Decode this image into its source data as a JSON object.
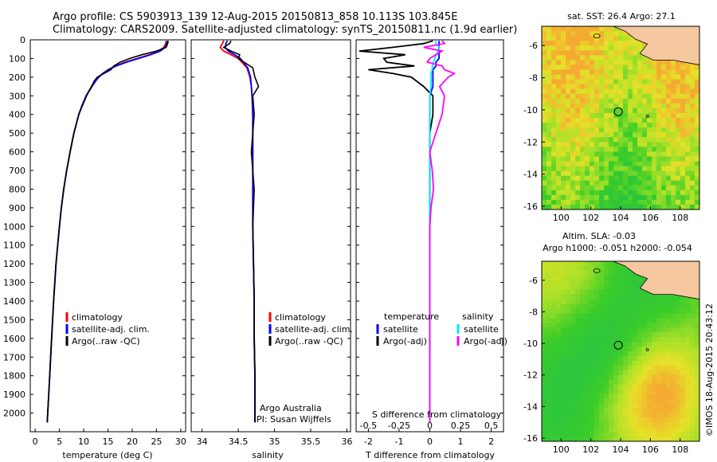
{
  "header": {
    "line1": "Argo profile: CS 5903913_139 12-Aug-2015 20150813_858 10.113S 103.845E",
    "line2": "Climatology: CARS2009. Satellite-adjusted climatology: synTS_20150811.nc (1.9d earlier)"
  },
  "colors": {
    "climatology": "#ff0000",
    "satellite": "#0000ff",
    "argo": "#000000",
    "salinity_sat": "#00e5ff",
    "salinity_argo": "#ff00ff",
    "land": "#f5c8a0"
  },
  "chart_data": [
    {
      "type": "line",
      "name": "temperature",
      "xlabel": "temperature (deg C)",
      "xlim": [
        -1,
        31
      ],
      "ylim": [
        2100,
        0
      ],
      "xticks": [
        "0",
        "5",
        "10",
        "15",
        "20",
        "25",
        "30"
      ],
      "yticks": [
        "0",
        "100",
        "200",
        "300",
        "400",
        "500",
        "600",
        "700",
        "800",
        "900",
        "1000",
        "1100",
        "1200",
        "1300",
        "1400",
        "1500",
        "1600",
        "1700",
        "1800",
        "1900",
        "2000"
      ],
      "legend": [
        "climatology",
        "satellite-adj. clim.",
        "Argo(..raw -QC)"
      ],
      "depth": [
        5,
        20,
        40,
        60,
        80,
        100,
        120,
        140,
        160,
        180,
        200,
        220,
        250,
        300,
        350,
        400,
        500,
        600,
        700,
        800,
        900,
        1000,
        1200,
        1400,
        1600,
        1800,
        2000,
        2050
      ],
      "series": [
        {
          "name": "climatology",
          "values": [
            27.0,
            26.9,
            26.5,
            25.5,
            23.5,
            21.0,
            18.5,
            16.5,
            15.0,
            13.9,
            13.0,
            12.4,
            11.6,
            10.5,
            9.7,
            9.0,
            8.0,
            7.2,
            6.5,
            5.9,
            5.4,
            5.0,
            4.3,
            3.8,
            3.4,
            3.0,
            2.6,
            2.5
          ]
        },
        {
          "name": "satellite-adj. clim.",
          "values": [
            27.3,
            27.1,
            26.8,
            25.8,
            23.8,
            21.3,
            18.8,
            16.7,
            15.1,
            14.0,
            13.1,
            12.5,
            11.7,
            10.5,
            9.7,
            9.0,
            8.0,
            7.2,
            6.5,
            5.9,
            5.4,
            5.0,
            4.3,
            3.8,
            3.4,
            3.0,
            2.6,
            2.5
          ]
        },
        {
          "name": "Argo(..raw -QC)",
          "values": [
            27.4,
            27.3,
            27.0,
            25.0,
            22.0,
            19.5,
            17.5,
            16.2,
            15.6,
            14.2,
            12.8,
            12.2,
            11.6,
            10.6,
            9.8,
            9.0,
            8.0,
            7.2,
            6.5,
            5.9,
            5.4,
            5.0,
            4.3,
            3.8,
            3.4,
            3.0,
            2.6,
            2.5
          ]
        }
      ]
    },
    {
      "type": "line",
      "name": "salinity",
      "xlabel": "salinity",
      "xlim": [
        33.85,
        36.05
      ],
      "ylim": [
        2100,
        0
      ],
      "xticks": [
        "34",
        "34.5",
        "35",
        "35.5",
        "36"
      ],
      "legend": [
        "climatology",
        "satellite-adj. clim.",
        "Argo(..raw -QC)"
      ],
      "annotation": [
        "Argo Australia",
        "PI: Susan Wijffels"
      ],
      "depth": [
        5,
        20,
        40,
        60,
        80,
        100,
        150,
        200,
        250,
        300,
        400,
        500,
        600,
        700,
        800,
        1000,
        1200,
        1400,
        1600,
        1800,
        2000,
        2050
      ],
      "series": [
        {
          "name": "climatology",
          "values": [
            34.3,
            34.28,
            34.25,
            34.3,
            34.4,
            34.5,
            34.62,
            34.66,
            34.68,
            34.69,
            34.7,
            34.7,
            34.7,
            34.7,
            34.7,
            34.7,
            34.71,
            34.72,
            34.72,
            34.73,
            34.73,
            34.73
          ]
        },
        {
          "name": "satellite-adj. clim.",
          "values": [
            34.35,
            34.33,
            34.32,
            34.36,
            34.45,
            34.53,
            34.63,
            34.67,
            34.68,
            34.69,
            34.7,
            34.7,
            34.7,
            34.7,
            34.7,
            34.7,
            34.71,
            34.72,
            34.72,
            34.73,
            34.73,
            34.73
          ]
        },
        {
          "name": "Argo(..raw -QC)",
          "values": [
            34.4,
            34.38,
            34.3,
            34.4,
            34.52,
            34.5,
            34.7,
            34.73,
            34.78,
            34.7,
            34.72,
            34.7,
            34.68,
            34.7,
            34.72,
            34.7,
            34.71,
            34.72,
            34.72,
            34.73,
            34.73,
            34.73
          ]
        }
      ]
    },
    {
      "type": "line",
      "name": "difference",
      "xlabel": "T difference from climatology",
      "xlabel2": "S difference from climatology",
      "xlim": [
        -2.4,
        2.4
      ],
      "ylim": [
        2100,
        0
      ],
      "xticks": [
        "-2",
        "-1",
        "0",
        "1",
        "2"
      ],
      "xticks2": [
        "-0.5",
        "-0.25",
        "0",
        "0.25",
        "0.5"
      ],
      "legend_titles": [
        "temperature",
        "salinity"
      ],
      "legend": [
        "satellite",
        "Argo(-adj)",
        "satellite",
        "Argo(-adj)"
      ],
      "depth": [
        5,
        20,
        40,
        60,
        80,
        100,
        120,
        140,
        160,
        180,
        200,
        250,
        300,
        400,
        500,
        600,
        700,
        800,
        900,
        1000,
        1500,
        2000,
        2050
      ],
      "series": [
        {
          "name": "temperature satellite",
          "values": [
            0.3,
            0.3,
            0.3,
            0.3,
            0.3,
            0.3,
            0.2,
            0.2,
            0.1,
            0.1,
            0.1,
            0.1,
            0.0,
            0.0,
            0.0,
            0.0,
            0.0,
            0.0,
            0.0,
            0.0,
            0.0,
            0.0,
            0.0
          ]
        },
        {
          "name": "temperature Argo(-adj)",
          "values": [
            0.1,
            -0.2,
            -1.2,
            -2.3,
            -0.8,
            -1.5,
            -1.4,
            -0.5,
            -2.0,
            -1.2,
            -0.6,
            -0.2,
            0.1,
            0.1,
            0.0,
            0.0,
            0.0,
            0.0,
            0.0,
            0.0,
            0.0,
            0.0,
            0.0
          ]
        },
        {
          "name": "salinity satellite",
          "values": [
            0.05,
            0.05,
            0.08,
            0.07,
            0.05,
            0.04,
            0.03,
            0.02,
            0.02,
            0.01,
            0.01,
            0.01,
            0.0,
            0.0,
            0.0,
            0.0,
            0.0,
            0.0,
            0.0,
            0.0,
            0.0,
            0.0,
            0.0
          ]
        },
        {
          "name": "salinity Argo(-adj)",
          "values": [
            0.1,
            0.12,
            -0.05,
            0.1,
            0.05,
            0.0,
            -0.02,
            0.1,
            0.12,
            0.2,
            0.15,
            0.08,
            0.12,
            0.1,
            0.05,
            0.0,
            0.02,
            0.03,
            0.01,
            0.0,
            0.0,
            0.0,
            0.0
          ]
        }
      ]
    },
    {
      "type": "heatmap",
      "name": "sat-sst-map",
      "title": "sat. SST: 26.4  Argo: 27.1",
      "xticks": [
        "100",
        "102",
        "104",
        "106",
        "108"
      ],
      "yticks": [
        "-6",
        "-8",
        "-10",
        "-12",
        "-14",
        "-16"
      ],
      "xlim": [
        98.7,
        109.3
      ],
      "ylim": [
        -16.2,
        -4.8
      ],
      "argo_position": [
        103.845,
        -10.113
      ]
    },
    {
      "type": "heatmap",
      "name": "sla-map",
      "title1": "Altim. SLA: -0.03",
      "title2": "Argo h1000: -0.051  h2000: -0.054",
      "xticks": [
        "100",
        "102",
        "104",
        "106",
        "108"
      ],
      "yticks": [
        "-6",
        "-8",
        "-10",
        "-12",
        "-14",
        "-16"
      ],
      "xlim": [
        98.7,
        109.3
      ],
      "ylim": [
        -16.2,
        -4.8
      ],
      "argo_position": [
        103.845,
        -10.113
      ]
    }
  ],
  "side_label": "©IMOS 18-Aug-2015 20:43:12"
}
